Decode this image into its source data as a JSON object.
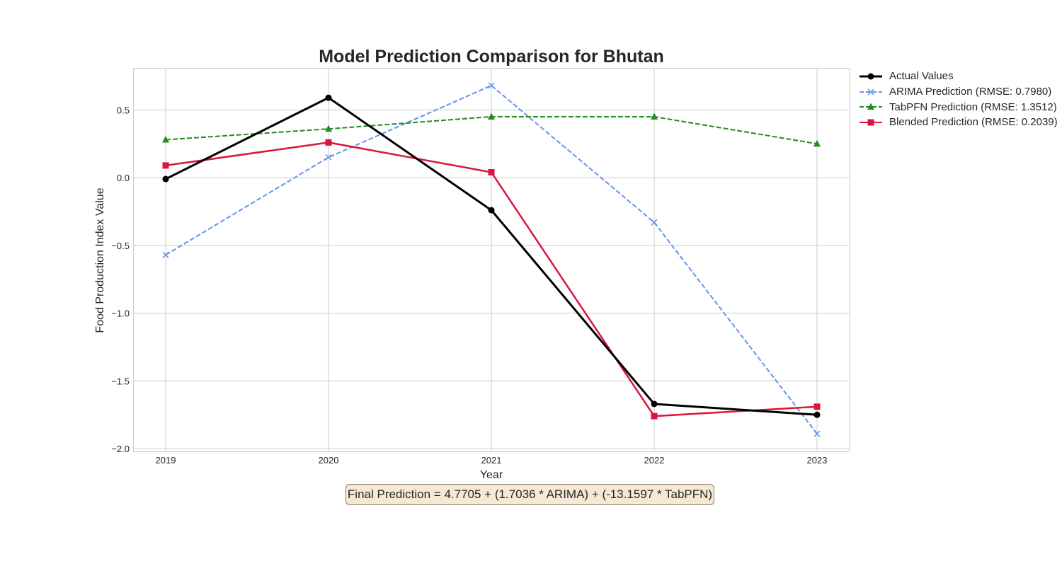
{
  "chart_data": {
    "type": "line",
    "title": "Model Prediction Comparison for Bhutan",
    "xlabel": "Year",
    "ylabel": "Food Production Index Value",
    "x": [
      2019,
      2020,
      2021,
      2022,
      2023
    ],
    "xlim": [
      2018.8,
      2023.2
    ],
    "ylim": [
      -2.02,
      0.81
    ],
    "yticks": [
      0.5,
      0.0,
      -0.5,
      -1.0,
      -1.5,
      -2.0
    ],
    "ytick_labels": [
      "0.5",
      "0.0",
      "−0.5",
      "−1.0",
      "−1.5",
      "−2.0"
    ],
    "grid": true,
    "legend_position": "outside-top-right",
    "series": [
      {
        "name": "Actual Values",
        "values": [
          -0.01,
          0.59,
          -0.24,
          -1.67,
          -1.75
        ],
        "color": "#000000",
        "dash": "solid",
        "marker": "circle"
      },
      {
        "name": "ARIMA Prediction (RMSE: 0.7980)",
        "values": [
          -0.57,
          0.15,
          0.68,
          -0.33,
          -1.89
        ],
        "color": "#6495ed",
        "dash": "dashed",
        "marker": "x"
      },
      {
        "name": "TabPFN Prediction (RMSE: 1.3512)",
        "values": [
          0.28,
          0.36,
          0.45,
          0.45,
          0.25
        ],
        "color": "#228b22",
        "dash": "dashed",
        "marker": "triangle"
      },
      {
        "name": "Blended Prediction (RMSE: 0.2039)",
        "values": [
          0.09,
          0.26,
          0.04,
          -1.76,
          -1.69
        ],
        "color": "#dc143c",
        "dash": "solid",
        "marker": "square"
      }
    ],
    "annotation": "Final Prediction = 4.7705 + (1.7036 * ARIMA) + (-13.1597 * TabPFN)"
  }
}
